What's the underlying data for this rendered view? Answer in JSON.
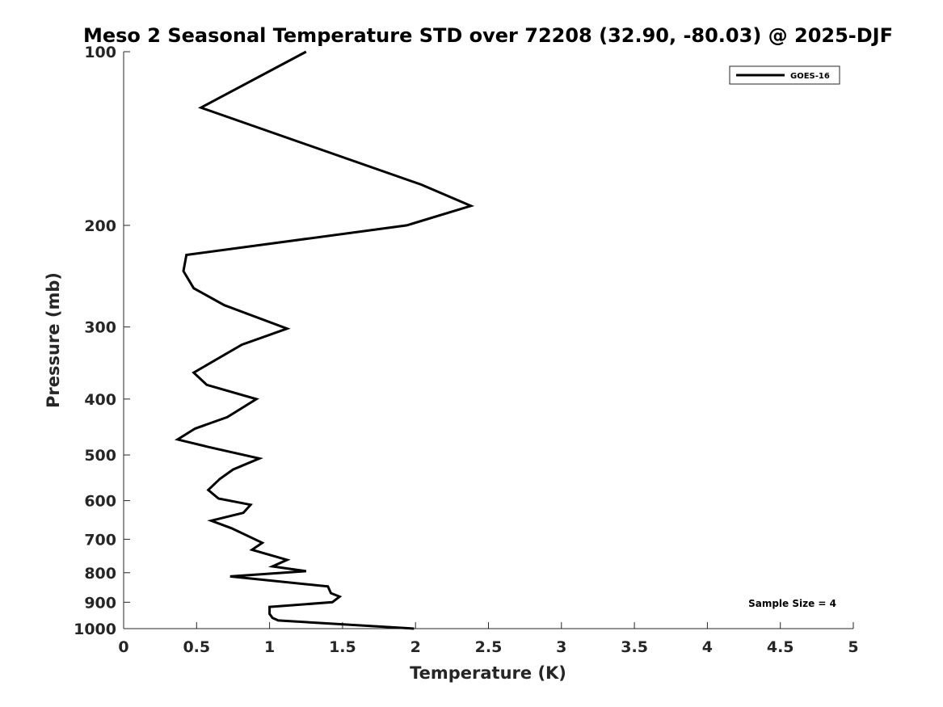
{
  "chart_data": {
    "type": "line",
    "title": "Meso 2 Seasonal Temperature STD over 72208 (32.90, -80.03) @ 2025-DJF",
    "xlabel": "Temperature (K)",
    "ylabel": "Pressure (mb)",
    "xlim": [
      0,
      5
    ],
    "ylim": [
      100,
      1000
    ],
    "yscale": "log",
    "y_reversed": true,
    "x_ticks": [
      0,
      0.5,
      1,
      1.5,
      2,
      2.5,
      3,
      3.5,
      4,
      4.5,
      5
    ],
    "x_tick_labels": [
      "0",
      "0.5",
      "1",
      "1.5",
      "2",
      "2.5",
      "3",
      "3.5",
      "4",
      "4.5",
      "5"
    ],
    "y_ticks": [
      100,
      200,
      300,
      400,
      500,
      600,
      700,
      800,
      900,
      1000
    ],
    "y_tick_labels": [
      "100",
      "200",
      "300",
      "400",
      "500",
      "600",
      "700",
      "800",
      "900",
      "1000"
    ],
    "legend_position": "top-right",
    "grid": false,
    "annotation": "Sample Size = 4",
    "series": [
      {
        "name": "GOES-16",
        "color": "#000000",
        "points": [
          [
            1.25,
            100
          ],
          [
            0.53,
            125
          ],
          [
            2.04,
            170
          ],
          [
            2.38,
            185
          ],
          [
            1.94,
            200
          ],
          [
            0.43,
            225
          ],
          [
            0.41,
            240
          ],
          [
            0.48,
            257
          ],
          [
            0.69,
            275
          ],
          [
            1.12,
            302
          ],
          [
            0.81,
            322
          ],
          [
            0.48,
            360
          ],
          [
            0.57,
            378
          ],
          [
            0.91,
            400
          ],
          [
            0.71,
            430
          ],
          [
            0.49,
            450
          ],
          [
            0.37,
            470
          ],
          [
            0.59,
            485
          ],
          [
            0.93,
            507
          ],
          [
            0.75,
            530
          ],
          [
            0.66,
            550
          ],
          [
            0.58,
            575
          ],
          [
            0.65,
            595
          ],
          [
            0.87,
            610
          ],
          [
            0.82,
            630
          ],
          [
            0.6,
            650
          ],
          [
            0.74,
            670
          ],
          [
            0.95,
            710
          ],
          [
            0.88,
            730
          ],
          [
            1.12,
            760
          ],
          [
            1.02,
            780
          ],
          [
            1.25,
            795
          ],
          [
            0.73,
            812
          ],
          [
            1.4,
            845
          ],
          [
            1.42,
            868
          ],
          [
            1.48,
            880
          ],
          [
            1.43,
            900
          ],
          [
            1.0,
            917
          ],
          [
            1.0,
            943
          ],
          [
            1.02,
            958
          ],
          [
            1.06,
            968
          ],
          [
            1.99,
            1000
          ]
        ]
      }
    ]
  }
}
